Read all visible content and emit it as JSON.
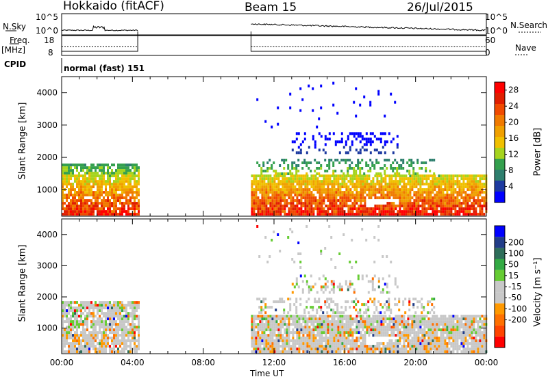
{
  "header": {
    "radar": "Hokkaido (fitACF)",
    "beam": "Beam 15",
    "date": "26/Jul/2015"
  },
  "params_panel": {
    "left_labels": [
      "N.Sky",
      "Freq.",
      "[MHz]",
      "CPID"
    ],
    "right_labels": [
      "N.Search",
      "Nave"
    ],
    "nsky_ticks": [
      "10^5",
      "10^0"
    ],
    "nsearch_ticks": [
      "10^5",
      "10^0"
    ],
    "freq_ticks": [
      "18",
      "8"
    ],
    "nave_ticks": [
      "60",
      "0"
    ],
    "cpid_text": "normal (fast) 151"
  },
  "colors": {
    "white": "#ffffff",
    "power_scale": [
      "#0000ff",
      "#1d3aa0",
      "#2e7f6e",
      "#34a04e",
      "#a6d41e",
      "#f0c000",
      "#f0a000",
      "#f07a00",
      "#f04a00",
      "#e01e00",
      "#ff0000"
    ],
    "velocity_scale": [
      "#ff0000",
      "#ff4400",
      "#ff7000",
      "#ff9900",
      "#c8c8c8",
      "#c8c8c8",
      "#66cc33",
      "#33aa44",
      "#2e6e5a",
      "#223d88",
      "#0000ff"
    ]
  },
  "chart_data": [
    {
      "type": "heatmap",
      "name": "power",
      "ylabel": "Slant Range [km]",
      "xlim": [
        "00:00",
        "24:00"
      ],
      "ylim": [
        180,
        4500
      ],
      "yticks": [
        1000,
        2000,
        3000,
        4000
      ],
      "colorbar": {
        "label": "Power [dB]",
        "range": [
          0,
          30
        ],
        "ticks": [
          4,
          8,
          12,
          16,
          20,
          24,
          28
        ]
      },
      "data_blocks_hours": [
        [
          0.0,
          4.3
        ],
        [
          10.7,
          24.0
        ]
      ]
    },
    {
      "type": "heatmap",
      "name": "velocity",
      "ylabel": "Slant Range [km]",
      "xlabel": "Time UT",
      "xlim": [
        "00:00",
        "24:00"
      ],
      "ylim": [
        180,
        4500
      ],
      "yticks": [
        1000,
        2000,
        3000,
        4000
      ],
      "xticks": [
        "00:00",
        "04:00",
        "08:00",
        "12:00",
        "16:00",
        "20:00",
        "00:00"
      ],
      "colorbar": {
        "label": "Velocity [m s⁻¹]",
        "ticks": [
          200,
          100,
          50,
          15,
          -15,
          -50,
          -100,
          -200
        ]
      },
      "data_blocks_hours": [
        [
          0.0,
          4.3
        ],
        [
          10.7,
          24.0
        ]
      ]
    }
  ]
}
